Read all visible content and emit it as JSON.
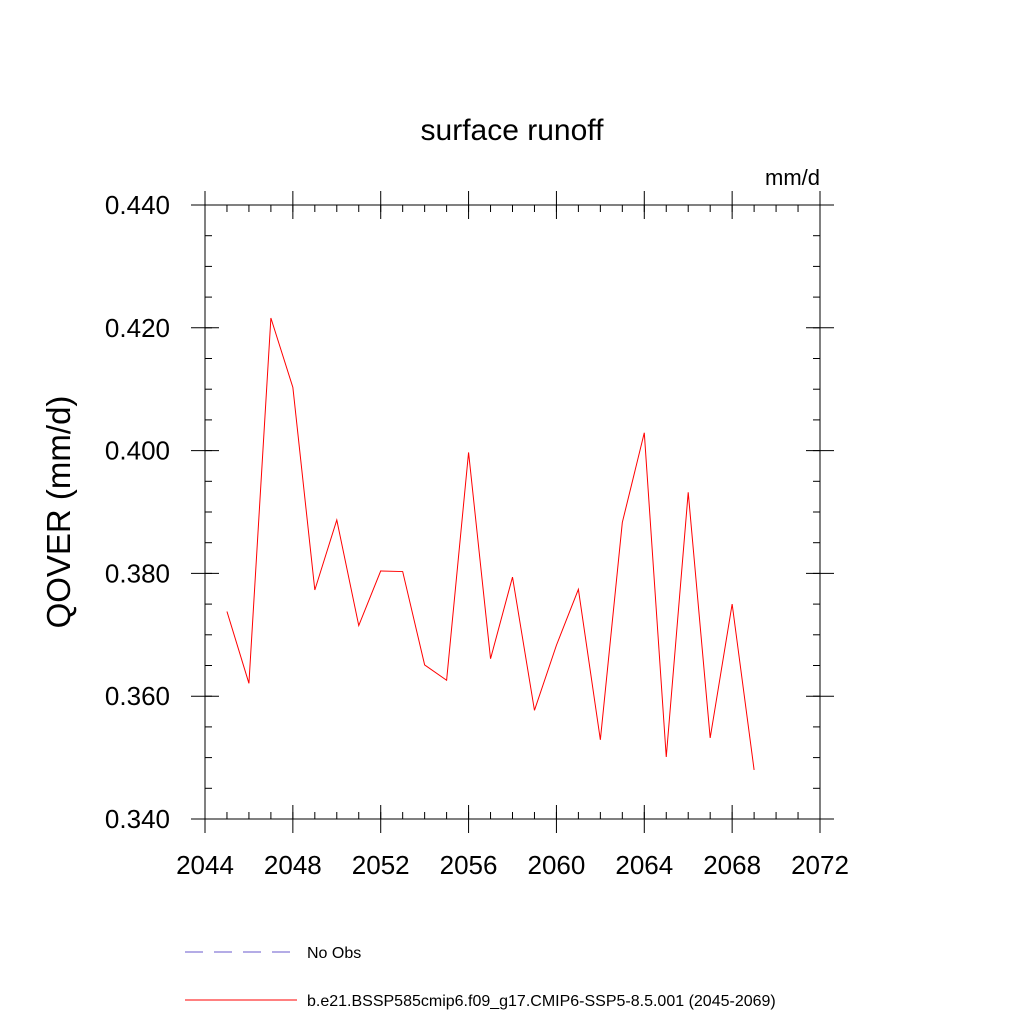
{
  "chart_data": {
    "type": "line",
    "title": "surface runoff",
    "units_label": "mm/d",
    "ylabel": "QOVER  (mm/d)",
    "xlabel": "",
    "xlim": [
      2044,
      2072
    ],
    "ylim": [
      0.34,
      0.44
    ],
    "x_ticks": [
      2044,
      2048,
      2052,
      2056,
      2060,
      2064,
      2068,
      2072
    ],
    "x_tick_labels": [
      "2044",
      "2048",
      "2052",
      "2056",
      "2060",
      "2064",
      "2068",
      "2072"
    ],
    "x_minor_step": 1,
    "y_ticks": [
      0.34,
      0.36,
      0.38,
      0.4,
      0.42,
      0.44
    ],
    "y_tick_labels": [
      "0.340",
      "0.360",
      "0.380",
      "0.400",
      "0.420",
      "0.440"
    ],
    "y_minor_step": 0.005,
    "grid": false,
    "series": [
      {
        "name": "b.e21.BSSP585cmip6.f09_g17.CMIP6-SSP5-8.5.001 (2045-2069)",
        "color": "#ff0000",
        "dash": "solid",
        "x": [
          2045,
          2046,
          2047,
          2048,
          2049,
          2050,
          2051,
          2052,
          2053,
          2054,
          2055,
          2056,
          2057,
          2058,
          2059,
          2060,
          2061,
          2062,
          2063,
          2064,
          2065,
          2066,
          2067,
          2068,
          2069
        ],
        "values": [
          0.3738,
          0.3621,
          0.4216,
          0.4103,
          0.3773,
          0.3887,
          0.3715,
          0.3804,
          0.3803,
          0.3651,
          0.3626,
          0.3997,
          0.3661,
          0.3794,
          0.3577,
          0.3683,
          0.3774,
          0.3529,
          0.3883,
          0.4029,
          0.3501,
          0.3932,
          0.3532,
          0.375,
          0.348
        ]
      }
    ],
    "legend": {
      "placement": "bottom-left",
      "entries": [
        {
          "label": "No Obs",
          "color": "#6a5acd",
          "dash": "dashed"
        },
        {
          "label": "b.e21.BSSP585cmip6.f09_g17.CMIP6-SSP5-8.5.001 (2045-2069)",
          "color": "#ff0000",
          "dash": "solid"
        }
      ]
    }
  }
}
